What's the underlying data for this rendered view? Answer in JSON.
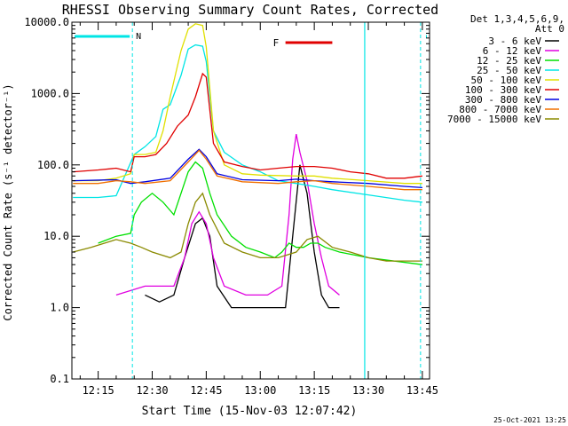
{
  "chart_data": {
    "type": "line",
    "title": "RHESSI Observing Summary Count Rates, Corrected",
    "xlabel": "Start Time (15-Nov-03 12:07:42)",
    "ylabel": "Corrected Count Rate (s⁻¹ detector⁻¹)",
    "y_scale": "log",
    "ylim": [
      0.1,
      10000
    ],
    "xlim": [
      "12:07:42",
      "13:47:00"
    ],
    "x_ticks": [
      "12:15",
      "12:30",
      "12:45",
      "13:00",
      "13:15",
      "13:30",
      "13:45"
    ],
    "y_ticks": [
      "0.1",
      "1.0",
      "10.0",
      "100.0",
      "1000.0",
      "10000.0"
    ],
    "legend_header": [
      "Det 1,3,4,5,6,9,",
      "Att 0"
    ],
    "legend_position": "right",
    "footer_date": "25-Oct-2021 13:25",
    "annotations": [
      {
        "label": "N",
        "kind": "night",
        "color": "#00e5e5",
        "intervals": [
          [
            "12:07:42",
            "12:24:30"
          ],
          [
            "13:46:00",
            "13:47:00"
          ]
        ]
      },
      {
        "label": "F",
        "kind": "flare",
        "color": "#e00000",
        "interval": [
          "13:07:00",
          "13:20:00"
        ]
      }
    ],
    "vertical_markers": [
      "12:24:30",
      "13:29:00",
      "13:44:30"
    ],
    "series": [
      {
        "name": "3 - 6 keV",
        "color": "#000000",
        "x": [
          "12:28",
          "12:32",
          "12:36",
          "12:39",
          "12:42",
          "12:44",
          "12:46",
          "12:48",
          "12:52",
          "13:00",
          "13:07",
          "13:09",
          "13:11",
          "13:13",
          "13:15",
          "13:17",
          "13:19",
          "13:22"
        ],
        "values": [
          1.5,
          1.2,
          1.5,
          5,
          15,
          18,
          10,
          2,
          1,
          1,
          1,
          10,
          100,
          40,
          6,
          1.5,
          1,
          1
        ]
      },
      {
        "name": "6 - 12 keV",
        "color": "#e000e0",
        "x": [
          "12:20",
          "12:28",
          "12:32",
          "12:36",
          "12:39",
          "12:41",
          "12:43",
          "12:45",
          "12:47",
          "12:50",
          "12:56",
          "13:02",
          "13:06",
          "13:08",
          "13:09",
          "13:10",
          "13:11",
          "13:13",
          "13:15",
          "13:17",
          "13:19",
          "13:22"
        ],
        "values": [
          1.5,
          2,
          2,
          2,
          5,
          15,
          22,
          15,
          5,
          2,
          1.5,
          1.5,
          2,
          20,
          120,
          270,
          150,
          60,
          15,
          5,
          2,
          1.5
        ]
      },
      {
        "name": "12 - 25 keV",
        "color": "#00e000",
        "x": [
          "12:15",
          "12:20",
          "12:24",
          "12:25",
          "12:27",
          "12:30",
          "12:33",
          "12:36",
          "12:40",
          "12:42",
          "12:44",
          "12:46",
          "12:48",
          "12:52",
          "12:56",
          "13:00",
          "13:04",
          "13:06",
          "13:08",
          "13:10",
          "13:12",
          "13:14",
          "13:16",
          "13:18",
          "13:22",
          "13:30",
          "13:45"
        ],
        "values": [
          8,
          10,
          11,
          20,
          30,
          40,
          30,
          20,
          80,
          110,
          90,
          40,
          20,
          10,
          7,
          6,
          5,
          6,
          8,
          7,
          7,
          8,
          8,
          7,
          6,
          5,
          4
        ]
      },
      {
        "name": "25 - 50 keV",
        "color": "#00e5e5",
        "x": [
          "12:08",
          "12:15",
          "12:20",
          "12:25",
          "12:28",
          "12:31",
          "12:33",
          "12:35",
          "12:38",
          "12:40",
          "12:42",
          "12:44",
          "12:45",
          "12:47",
          "12:50",
          "12:55",
          "13:00",
          "13:05",
          "13:10",
          "13:15",
          "13:20",
          "13:30",
          "13:40",
          "13:45"
        ],
        "values": [
          35,
          35,
          37,
          140,
          180,
          250,
          600,
          700,
          1800,
          4200,
          4800,
          4600,
          2800,
          300,
          150,
          100,
          80,
          60,
          55,
          50,
          45,
          38,
          32,
          30
        ]
      },
      {
        "name": "50 - 100 keV",
        "color": "#e0e000",
        "x": [
          "12:08",
          "12:15",
          "12:20",
          "12:24",
          "12:25",
          "12:28",
          "12:31",
          "12:33",
          "12:35",
          "12:38",
          "12:40",
          "12:42",
          "12:44",
          "12:45",
          "12:47",
          "12:50",
          "12:55",
          "13:00",
          "13:10",
          "13:15",
          "13:20",
          "13:30",
          "13:40",
          "13:45"
        ],
        "values": [
          60,
          60,
          65,
          75,
          140,
          140,
          150,
          300,
          900,
          4000,
          8000,
          9500,
          9000,
          4500,
          300,
          100,
          75,
          72,
          70,
          70,
          65,
          60,
          55,
          55
        ]
      },
      {
        "name": "100 - 300 keV",
        "color": "#e00000",
        "x": [
          "12:08",
          "12:15",
          "12:20",
          "12:24",
          "12:25",
          "12:28",
          "12:31",
          "12:34",
          "12:37",
          "12:40",
          "12:42",
          "12:44",
          "12:45",
          "12:47",
          "12:50",
          "12:55",
          "13:00",
          "13:05",
          "13:10",
          "13:15",
          "13:20",
          "13:25",
          "13:30",
          "13:35",
          "13:40",
          "13:45"
        ],
        "values": [
          80,
          85,
          90,
          80,
          130,
          130,
          140,
          200,
          350,
          500,
          900,
          1900,
          1700,
          200,
          110,
          95,
          85,
          90,
          95,
          95,
          90,
          80,
          75,
          65,
          65,
          70
        ]
      },
      {
        "name": "300 - 800 keV",
        "color": "#0000e0",
        "x": [
          "12:08",
          "12:20",
          "12:24",
          "12:28",
          "12:35",
          "12:40",
          "12:43",
          "12:45",
          "12:48",
          "12:55",
          "13:05",
          "13:10",
          "13:15",
          "13:20",
          "13:30",
          "13:40",
          "13:45"
        ],
        "values": [
          60,
          62,
          55,
          58,
          65,
          120,
          165,
          130,
          75,
          62,
          60,
          63,
          60,
          58,
          55,
          50,
          48
        ]
      },
      {
        "name": "800 - 7000 keV",
        "color": "#f07000",
        "x": [
          "12:08",
          "12:15",
          "12:20",
          "12:24",
          "12:28",
          "12:35",
          "12:40",
          "12:43",
          "12:45",
          "12:48",
          "12:55",
          "13:05",
          "13:10",
          "13:15",
          "13:20",
          "13:30",
          "13:40",
          "13:45"
        ],
        "values": [
          55,
          55,
          60,
          58,
          55,
          60,
          110,
          160,
          120,
          70,
          58,
          55,
          58,
          60,
          55,
          50,
          45,
          45
        ]
      },
      {
        "name": "7000 - 15000 keV",
        "color": "#8a8a00",
        "x": [
          "12:08",
          "12:13",
          "12:20",
          "12:24",
          "12:27",
          "12:30",
          "12:35",
          "12:38",
          "12:40",
          "12:42",
          "12:44",
          "12:46",
          "12:50",
          "12:55",
          "13:00",
          "13:05",
          "13:10",
          "13:13",
          "13:16",
          "13:20",
          "13:25",
          "13:30",
          "13:35",
          "13:40",
          "13:45"
        ],
        "values": [
          6,
          7,
          9,
          8,
          7,
          6,
          5,
          6,
          15,
          30,
          40,
          20,
          8,
          6,
          5,
          5,
          6,
          9,
          10,
          7,
          6,
          5,
          4.5,
          4.5,
          4.5
        ]
      }
    ]
  }
}
